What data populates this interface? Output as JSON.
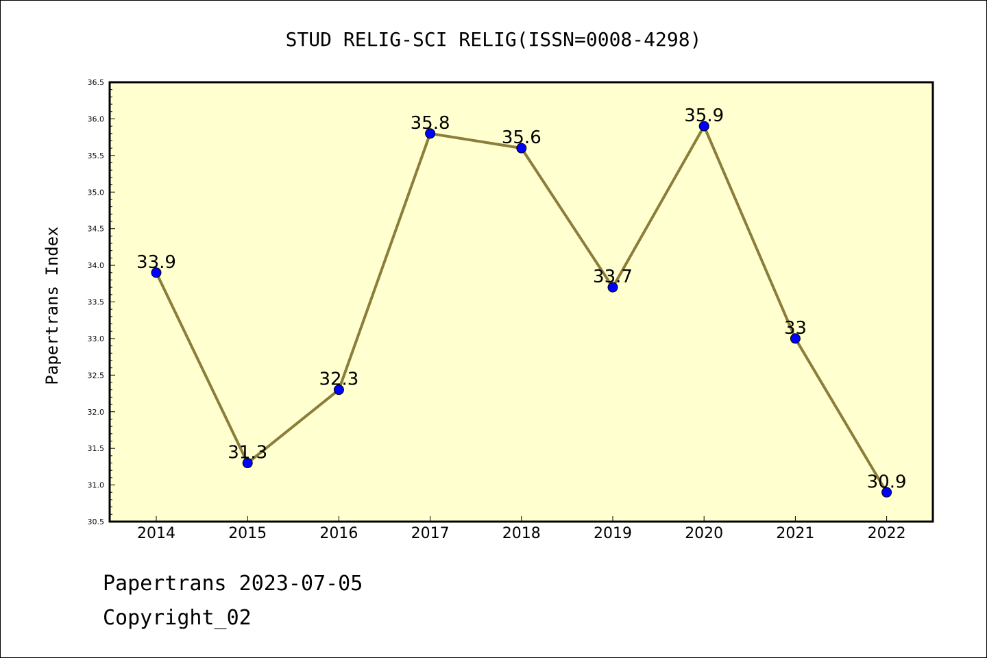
{
  "chart_data": {
    "type": "line",
    "title": "STUD RELIG-SCI RELIG(ISSN=0008-4298)",
    "xlabel": "",
    "ylabel": "Papertrans Index",
    "categories": [
      "2014",
      "2015",
      "2016",
      "2017",
      "2018",
      "2019",
      "2020",
      "2021",
      "2022"
    ],
    "series": [
      {
        "values": [
          33.9,
          31.3,
          32.3,
          35.8,
          35.6,
          33.7,
          35.9,
          33.0,
          30.9
        ],
        "labels": [
          "33.9",
          "31.3",
          "32.3",
          "35.8",
          "35.6",
          "33.7",
          "35.9",
          "33",
          "30.9"
        ]
      }
    ],
    "ylim": [
      30.5,
      36.5
    ],
    "yticks": [
      "30.5",
      "31.0",
      "31.5",
      "32.0",
      "32.5",
      "33.0",
      "33.5",
      "34.0",
      "34.5",
      "35.0",
      "35.5",
      "36.0",
      "36.5"
    ],
    "grid": false,
    "colors": {
      "plot_background": "#ffffd0",
      "line": "#8b7d3a",
      "marker": "#0000ff"
    }
  },
  "footer": {
    "line1": "Papertrans 2023-07-05",
    "line2": "Copyright_02"
  }
}
